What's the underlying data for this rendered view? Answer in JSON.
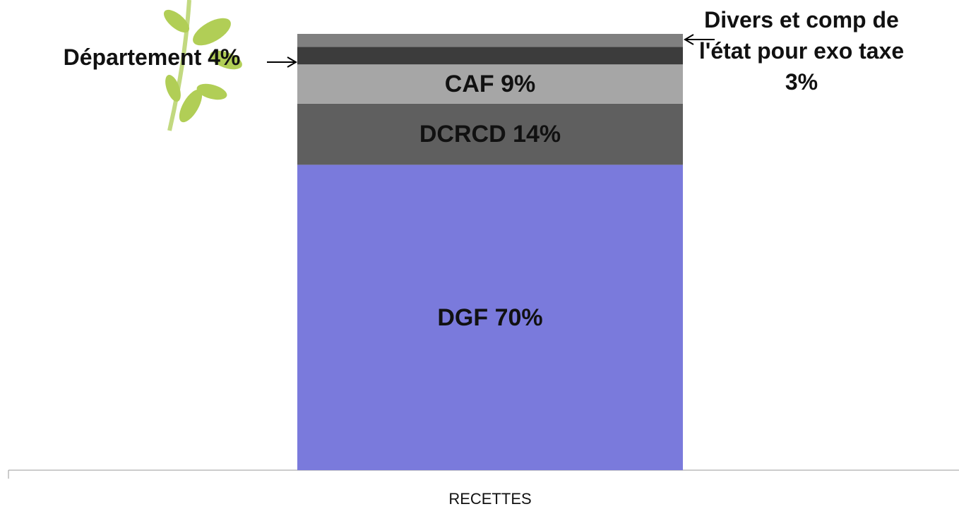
{
  "chart_data": {
    "type": "stacked_bar",
    "categories": [
      "RECETTES"
    ],
    "series": [
      {
        "color": "#7a7adc",
        "values": [
          70
        ],
        "value_labels": [
          "DGF 70%"
        ]
      },
      {
        "color": "#5f5f5f",
        "values": [
          14
        ],
        "value_labels": [
          "DCRCD 14%"
        ]
      },
      {
        "color": "#a6a6a6",
        "values": [
          9
        ],
        "value_labels": [
          "CAF 9%"
        ]
      },
      {
        "color": "#3c3c3c",
        "values": [
          4
        ],
        "value_labels": [
          "Département 4%"
        ]
      },
      {
        "color": "#808080",
        "values": [
          3
        ],
        "value_labels": [
          "Divers et comp de l'état pour exo taxe 3%"
        ]
      }
    ],
    "ylim": [
      0,
      100
    ]
  }
}
